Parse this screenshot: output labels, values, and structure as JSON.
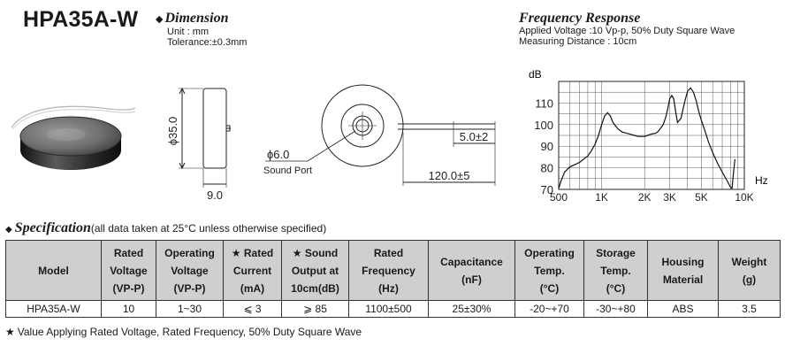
{
  "model_title": "HPA35A-W",
  "dimension": {
    "heading": "Dimension",
    "unit": "Unit : mm",
    "tolerance": "Tolerance:±0.3mm",
    "labels": {
      "diameter": "ϕ35.0",
      "height": "9.0",
      "sound_port_size": "ϕ6.0",
      "sound_port": "Sound Port",
      "strip": "5.0±2",
      "lead_length": "120.0±5"
    }
  },
  "frequency_response": {
    "heading": "Frequency Response",
    "voltage": "Applied Voltage :10 Vp-p, 50% Duty Square Wave",
    "distance": "Measuring Distance : 10cm"
  },
  "chart_data": {
    "type": "line",
    "ylabel": "dB",
    "xlabel": "Hz",
    "x_scale": "log",
    "xlim": [
      500,
      10000
    ],
    "ylim": [
      70,
      120
    ],
    "y_ticks": [
      70,
      80,
      90,
      100,
      110
    ],
    "x_ticks": [
      {
        "label": "500",
        "value": 500
      },
      {
        "label": "1K",
        "value": 1000
      },
      {
        "label": "2K",
        "value": 2000
      },
      {
        "label": "3K",
        "value": 3000
      },
      {
        "label": "5K",
        "value": 5000
      },
      {
        "label": "10K",
        "value": 10000
      }
    ],
    "grid": true,
    "series": [
      {
        "x": [
          500,
          520,
          550,
          600,
          650,
          700,
          750,
          800,
          850,
          900,
          950,
          1000,
          1050,
          1100,
          1150,
          1200,
          1300,
          1400,
          1500,
          1600,
          1700,
          1800,
          1900,
          2000,
          2100,
          2200,
          2300,
          2400,
          2500,
          2600,
          2700,
          2800,
          2900,
          3000,
          3100,
          3200,
          3300,
          3400,
          3600,
          3800,
          4000,
          4200,
          4400,
          4600,
          4800,
          5000,
          5300,
          5600,
          6000,
          6500,
          7000,
          7500,
          8000,
          8200,
          8400,
          8600
        ],
        "y": [
          70.5,
          74,
          78,
          80.5,
          81.5,
          82.5,
          84,
          85.5,
          88,
          91,
          95,
          100,
          104,
          105.5,
          104,
          101,
          98,
          96.5,
          96,
          95.5,
          95,
          94.5,
          94.5,
          94.5,
          95,
          95.5,
          95.8,
          96,
          97,
          98.5,
          100,
          103,
          107,
          112,
          113.5,
          112,
          106,
          101,
          103,
          110,
          115.5,
          117,
          115,
          111,
          106,
          102,
          97,
          92,
          87,
          82,
          78,
          74.5,
          71,
          70.5,
          78,
          84
        ]
      }
    ]
  },
  "spec": {
    "heading": "Specification",
    "note": "(all data taken at 25°C unless otherwise specified)",
    "headers": [
      {
        "lines": [
          "Model"
        ]
      },
      {
        "lines": [
          "Rated",
          "Voltage",
          "(VP-P)"
        ]
      },
      {
        "lines": [
          "Operating",
          "Voltage",
          "(VP-P)"
        ]
      },
      {
        "lines": [
          "★ Rated",
          "Current",
          "(mA)"
        ]
      },
      {
        "lines": [
          "★ Sound",
          "Output at",
          "10cm(dB)"
        ]
      },
      {
        "lines": [
          "Rated",
          "Frequency",
          "(Hz)"
        ]
      },
      {
        "lines": [
          "Capacitance",
          "(nF)"
        ]
      },
      {
        "lines": [
          "Operating",
          "Temp.",
          "(°C)"
        ]
      },
      {
        "lines": [
          "Storage",
          "Temp.",
          "(°C)"
        ]
      },
      {
        "lines": [
          "Housing",
          "Material"
        ]
      },
      {
        "lines": [
          "Weight",
          "(g)"
        ]
      }
    ],
    "row": [
      "HPA35A-W",
      "10",
      "1~30",
      "⩽ 3",
      "⩾ 85",
      "1100±500",
      "25±30%",
      "-20~+70",
      "-30~+80",
      "ABS",
      "3.5"
    ]
  },
  "footnote": "Value Applying Rated Voltage, Rated Frequency, 50% Duty Square Wave"
}
